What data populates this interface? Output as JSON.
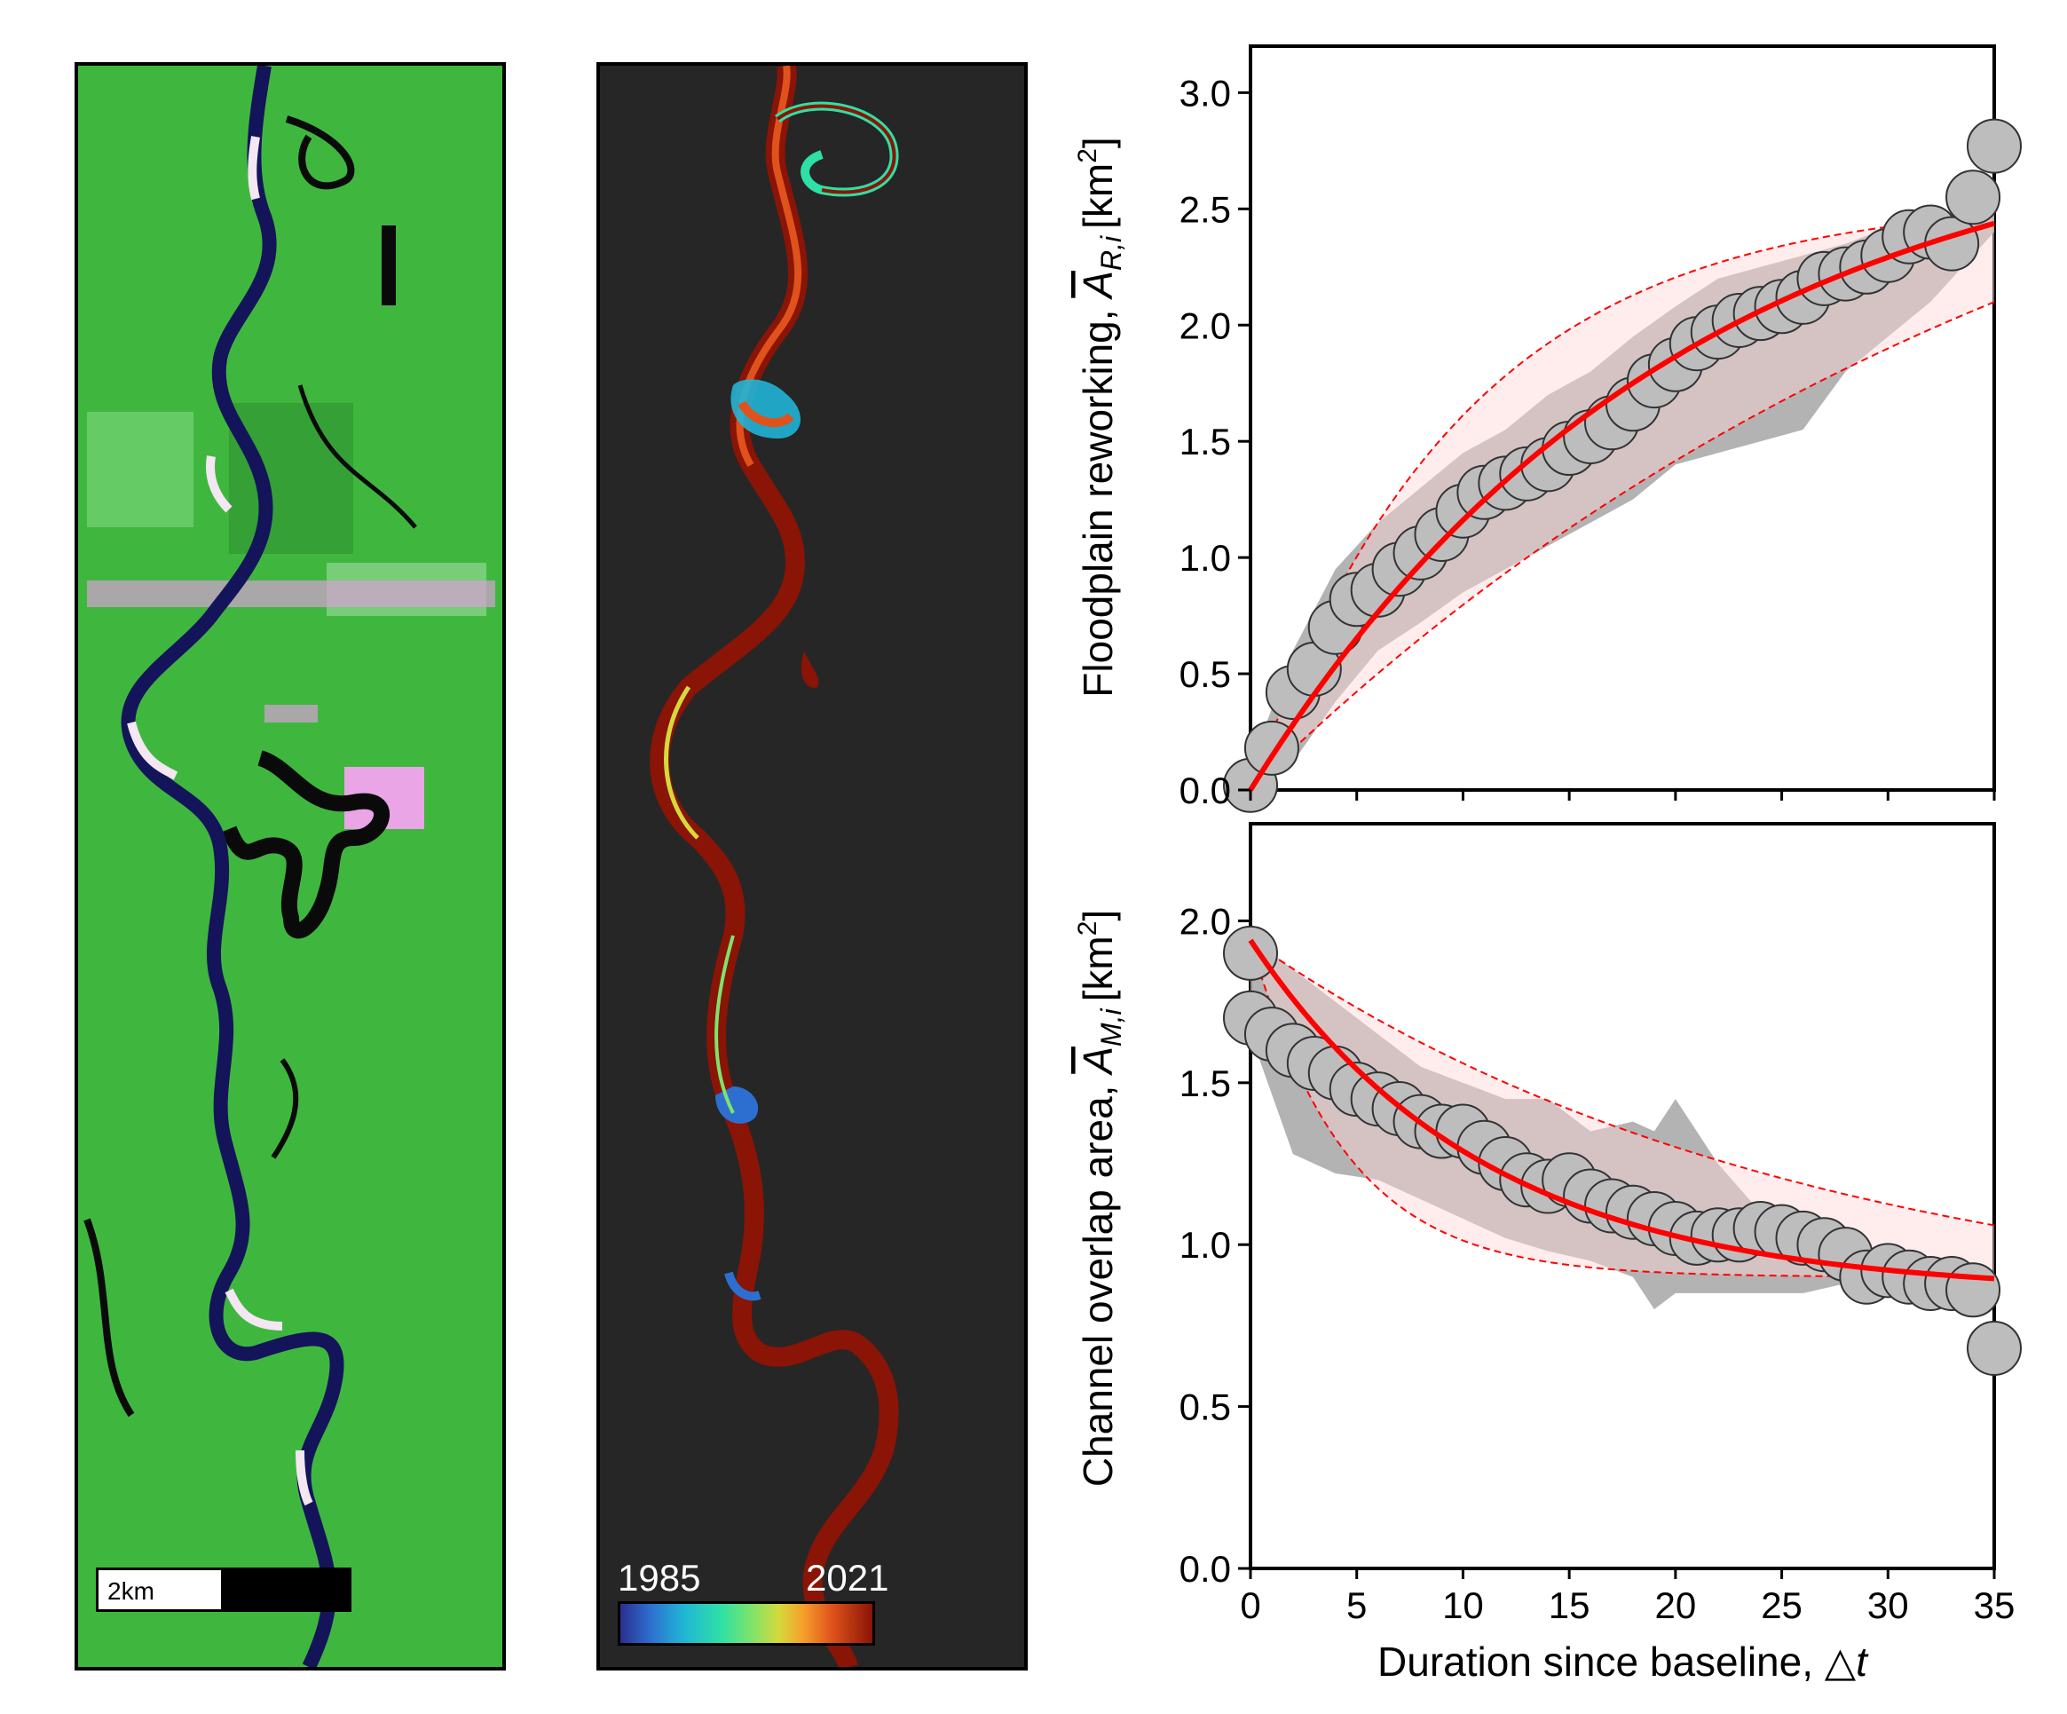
{
  "left_panel": {
    "scale_bar_label": "2km"
  },
  "middle_panel": {
    "colorbar_min_label": "1985",
    "colorbar_max_label": "2021",
    "colormap": [
      "#2a2f8f",
      "#2d6fd0",
      "#20b5d6",
      "#2fe0a6",
      "#7ee36a",
      "#d6d93b",
      "#f6a22c",
      "#e0521b",
      "#8a1405"
    ]
  },
  "colors": {
    "marker_fill": "#bdbdbd",
    "band_fill": "#a6a6a6",
    "fit_line": "#ff0000",
    "fit_band": "#ffd6d6",
    "background_dark": "#262626",
    "river": "#12124a",
    "vegetation": "#3fb73f"
  },
  "chart_data": [
    {
      "type": "scatter",
      "title": "",
      "ylabel_main": "Floodplain reworking,",
      "ylabel_symbol": "A",
      "ylabel_subscript": "R,i",
      "ylabel_unit": "[km",
      "ylabel_unit_sup": "2",
      "ylabel_unit_close": "]",
      "xlabel": "",
      "xlim": [
        0,
        35
      ],
      "ylim": [
        0,
        3.2
      ],
      "y_ticks": [
        "0.0",
        "0.5",
        "1.0",
        "1.5",
        "2.0",
        "2.5",
        "3.0"
      ],
      "y_tick_values": [
        0,
        0.5,
        1.0,
        1.5,
        2.0,
        2.5,
        3.0
      ],
      "x_tick_values": [
        0,
        5,
        10,
        15,
        20,
        25,
        30,
        35
      ],
      "x": [
        0,
        1,
        2,
        3,
        4,
        5,
        6,
        7,
        8,
        9,
        10,
        11,
        12,
        13,
        14,
        15,
        16,
        17,
        18,
        19,
        20,
        21,
        22,
        23,
        24,
        25,
        26,
        27,
        28,
        29,
        30,
        31,
        32,
        33,
        34,
        35
      ],
      "y": [
        0.02,
        0.18,
        0.42,
        0.52,
        0.7,
        0.82,
        0.86,
        0.95,
        1.02,
        1.1,
        1.2,
        1.28,
        1.32,
        1.36,
        1.4,
        1.47,
        1.52,
        1.58,
        1.66,
        1.76,
        1.83,
        1.92,
        1.97,
        2.02,
        2.05,
        2.08,
        2.12,
        2.2,
        2.22,
        2.25,
        2.3,
        2.38,
        2.4,
        2.35,
        2.55,
        2.77
      ],
      "band_x": [
        0,
        2,
        4,
        6,
        8,
        10,
        12,
        14,
        16,
        18,
        20,
        22,
        24,
        26,
        28,
        30,
        32,
        34,
        35
      ],
      "band_lower": [
        0.0,
        0.12,
        0.38,
        0.6,
        0.72,
        0.85,
        0.95,
        1.05,
        1.15,
        1.25,
        1.4,
        1.45,
        1.5,
        1.55,
        1.8,
        1.95,
        2.1,
        2.3,
        2.4
      ],
      "band_upper": [
        0.1,
        0.6,
        0.95,
        1.15,
        1.3,
        1.45,
        1.55,
        1.7,
        1.8,
        1.95,
        2.08,
        2.2,
        2.25,
        2.3,
        2.35,
        2.42,
        2.45,
        2.5,
        2.55
      ],
      "fit": {
        "asymptote": 2.95,
        "tau": 20.0
      },
      "fit_lower": {
        "asymptote": 3.6,
        "tau": 40.0
      },
      "fit_upper": {
        "asymptote": 2.55,
        "tau": 10.0
      }
    },
    {
      "type": "scatter",
      "title": "",
      "ylabel_main": "Channel overlap area,",
      "ylabel_symbol": "A",
      "ylabel_subscript": "M,i",
      "ylabel_unit": "[km",
      "ylabel_unit_sup": "2",
      "ylabel_unit_close": "]",
      "xlabel_main": "Duration since baseline,",
      "xlabel_symbol": "t",
      "xlim": [
        0,
        35
      ],
      "ylim": [
        0,
        2.3
      ],
      "y_ticks": [
        "0.0",
        "0.5",
        "1.0",
        "1.5",
        "2.0"
      ],
      "y_tick_values": [
        0,
        0.5,
        1.0,
        1.5,
        2.0
      ],
      "x_ticks": [
        "0",
        "5",
        "10",
        "15",
        "20",
        "25",
        "30",
        "35"
      ],
      "x_tick_values": [
        0,
        5,
        10,
        15,
        20,
        25,
        30,
        35
      ],
      "x": [
        0,
        0,
        1,
        2,
        3,
        4,
        5,
        6,
        7,
        8,
        9,
        10,
        11,
        12,
        13,
        14,
        15,
        16,
        17,
        18,
        19,
        20,
        21,
        22,
        23,
        24,
        25,
        26,
        27,
        28,
        29,
        30,
        31,
        32,
        33,
        34,
        35
      ],
      "y": [
        1.9,
        1.7,
        1.65,
        1.6,
        1.56,
        1.53,
        1.48,
        1.45,
        1.42,
        1.38,
        1.35,
        1.35,
        1.3,
        1.25,
        1.2,
        1.18,
        1.2,
        1.15,
        1.12,
        1.1,
        1.08,
        1.05,
        1.02,
        1.03,
        1.03,
        1.05,
        1.04,
        1.02,
        1.0,
        0.97,
        0.9,
        0.92,
        0.9,
        0.88,
        0.88,
        0.86,
        0.68
      ],
      "band_x": [
        0,
        2,
        4,
        6,
        8,
        10,
        12,
        14,
        16,
        18,
        19,
        20,
        22,
        24,
        26,
        28,
        30,
        32,
        34,
        35
      ],
      "band_lower": [
        1.65,
        1.28,
        1.22,
        1.2,
        1.14,
        1.08,
        1.02,
        0.98,
        0.95,
        0.9,
        0.8,
        0.85,
        0.85,
        0.85,
        0.85,
        0.88,
        0.88,
        0.85,
        0.85,
        0.85
      ],
      "band_upper": [
        1.95,
        1.85,
        1.75,
        1.65,
        1.55,
        1.5,
        1.45,
        1.45,
        1.35,
        1.38,
        1.35,
        1.45,
        1.25,
        1.1,
        1.05,
        1.0,
        0.95,
        0.92,
        0.9,
        0.9
      ],
      "fit": {
        "start": 1.94,
        "end": 0.85,
        "tau": 11.0
      },
      "fit_lower": {
        "start": 1.94,
        "end": 0.9,
        "tau": 4.5
      },
      "fit_upper": {
        "start": 1.94,
        "end": 0.75,
        "tau": 26.0
      }
    }
  ]
}
